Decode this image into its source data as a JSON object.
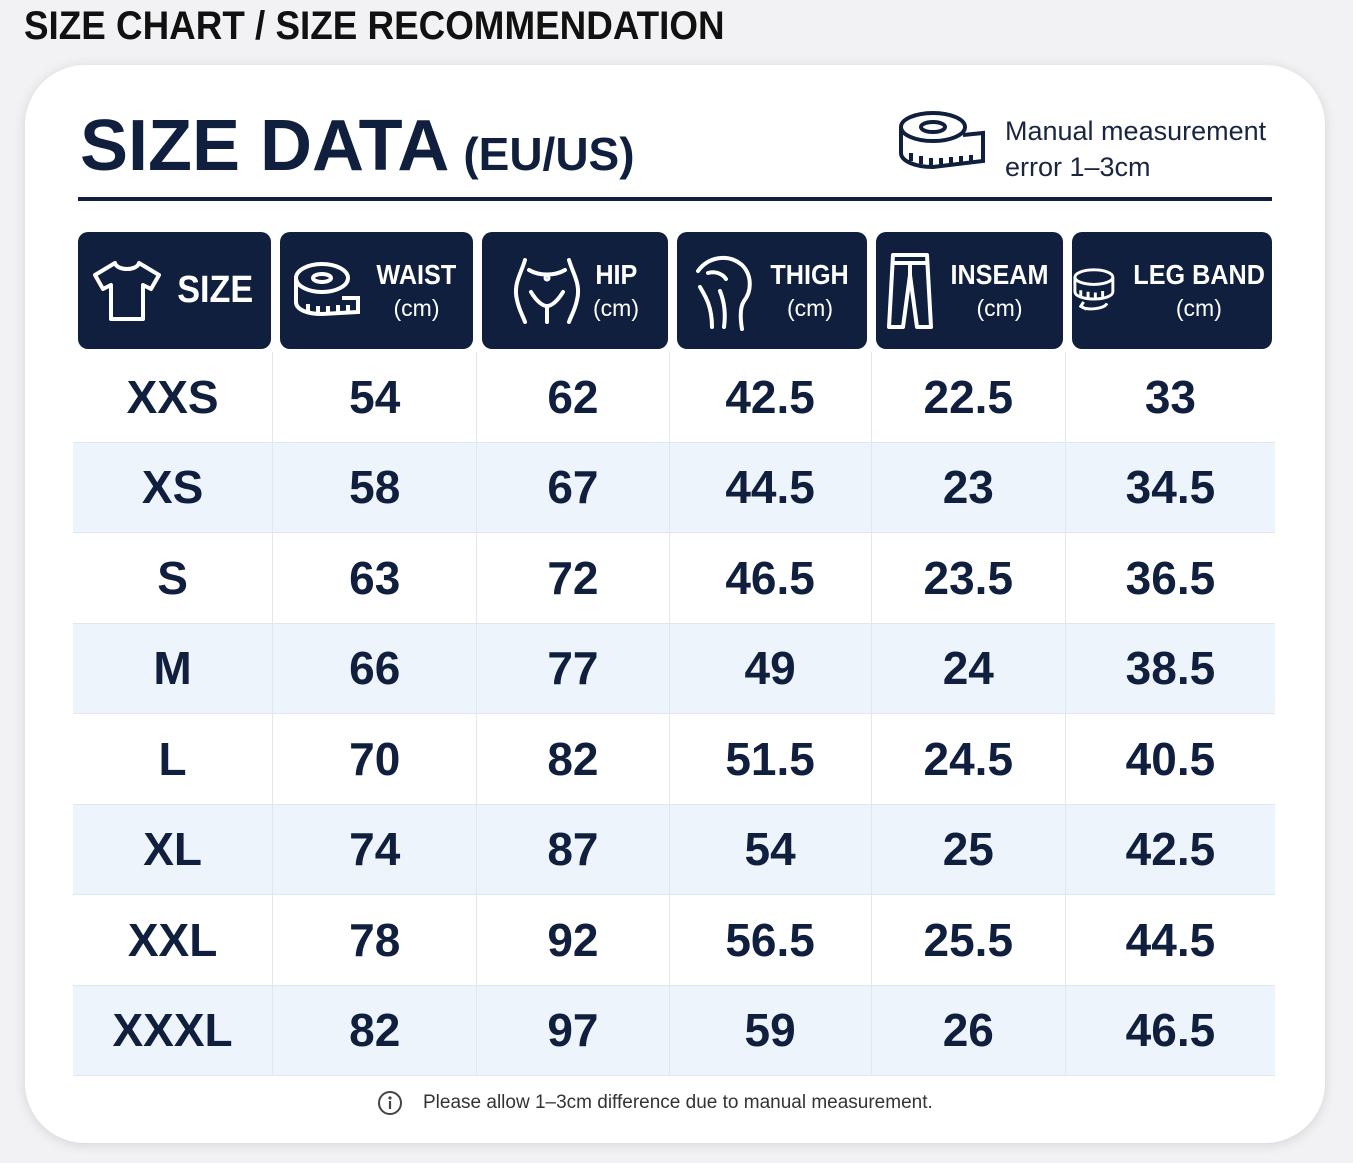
{
  "page_title": "SIZE CHART / SIZE RECOMMENDATION",
  "card": {
    "title": "SIZE DATA",
    "subtitle": "(EU/US)",
    "note_line1": "Manual measurement",
    "note_line2": "error 1–3cm"
  },
  "table": {
    "columns": [
      {
        "label": "SIZE"
      },
      {
        "label": "WAIST",
        "unit": "(cm)"
      },
      {
        "label": "HIP",
        "unit": "(cm)"
      },
      {
        "label": "THIGH",
        "unit": "(cm)"
      },
      {
        "label": "INSEAM",
        "unit": "(cm)"
      },
      {
        "label": "LEG BAND",
        "unit": "(cm)"
      }
    ],
    "rows": [
      [
        "XXS",
        54,
        62,
        42.5,
        22.5,
        33
      ],
      [
        "XS",
        58,
        67,
        44.5,
        23,
        34.5
      ],
      [
        "S",
        63,
        72,
        46.5,
        23.5,
        36.5
      ],
      [
        "M",
        66,
        77,
        49,
        24,
        38.5
      ],
      [
        "L",
        70,
        82,
        51.5,
        24.5,
        40.5
      ],
      [
        "XL",
        74,
        87,
        54,
        25,
        42.5
      ],
      [
        "XXL",
        78,
        92,
        56.5,
        25.5,
        44.5
      ],
      [
        "XXXL",
        82,
        97,
        59,
        26,
        46.5
      ]
    ]
  },
  "footer": "Please allow 1–3cm difference due to manual measurement."
}
